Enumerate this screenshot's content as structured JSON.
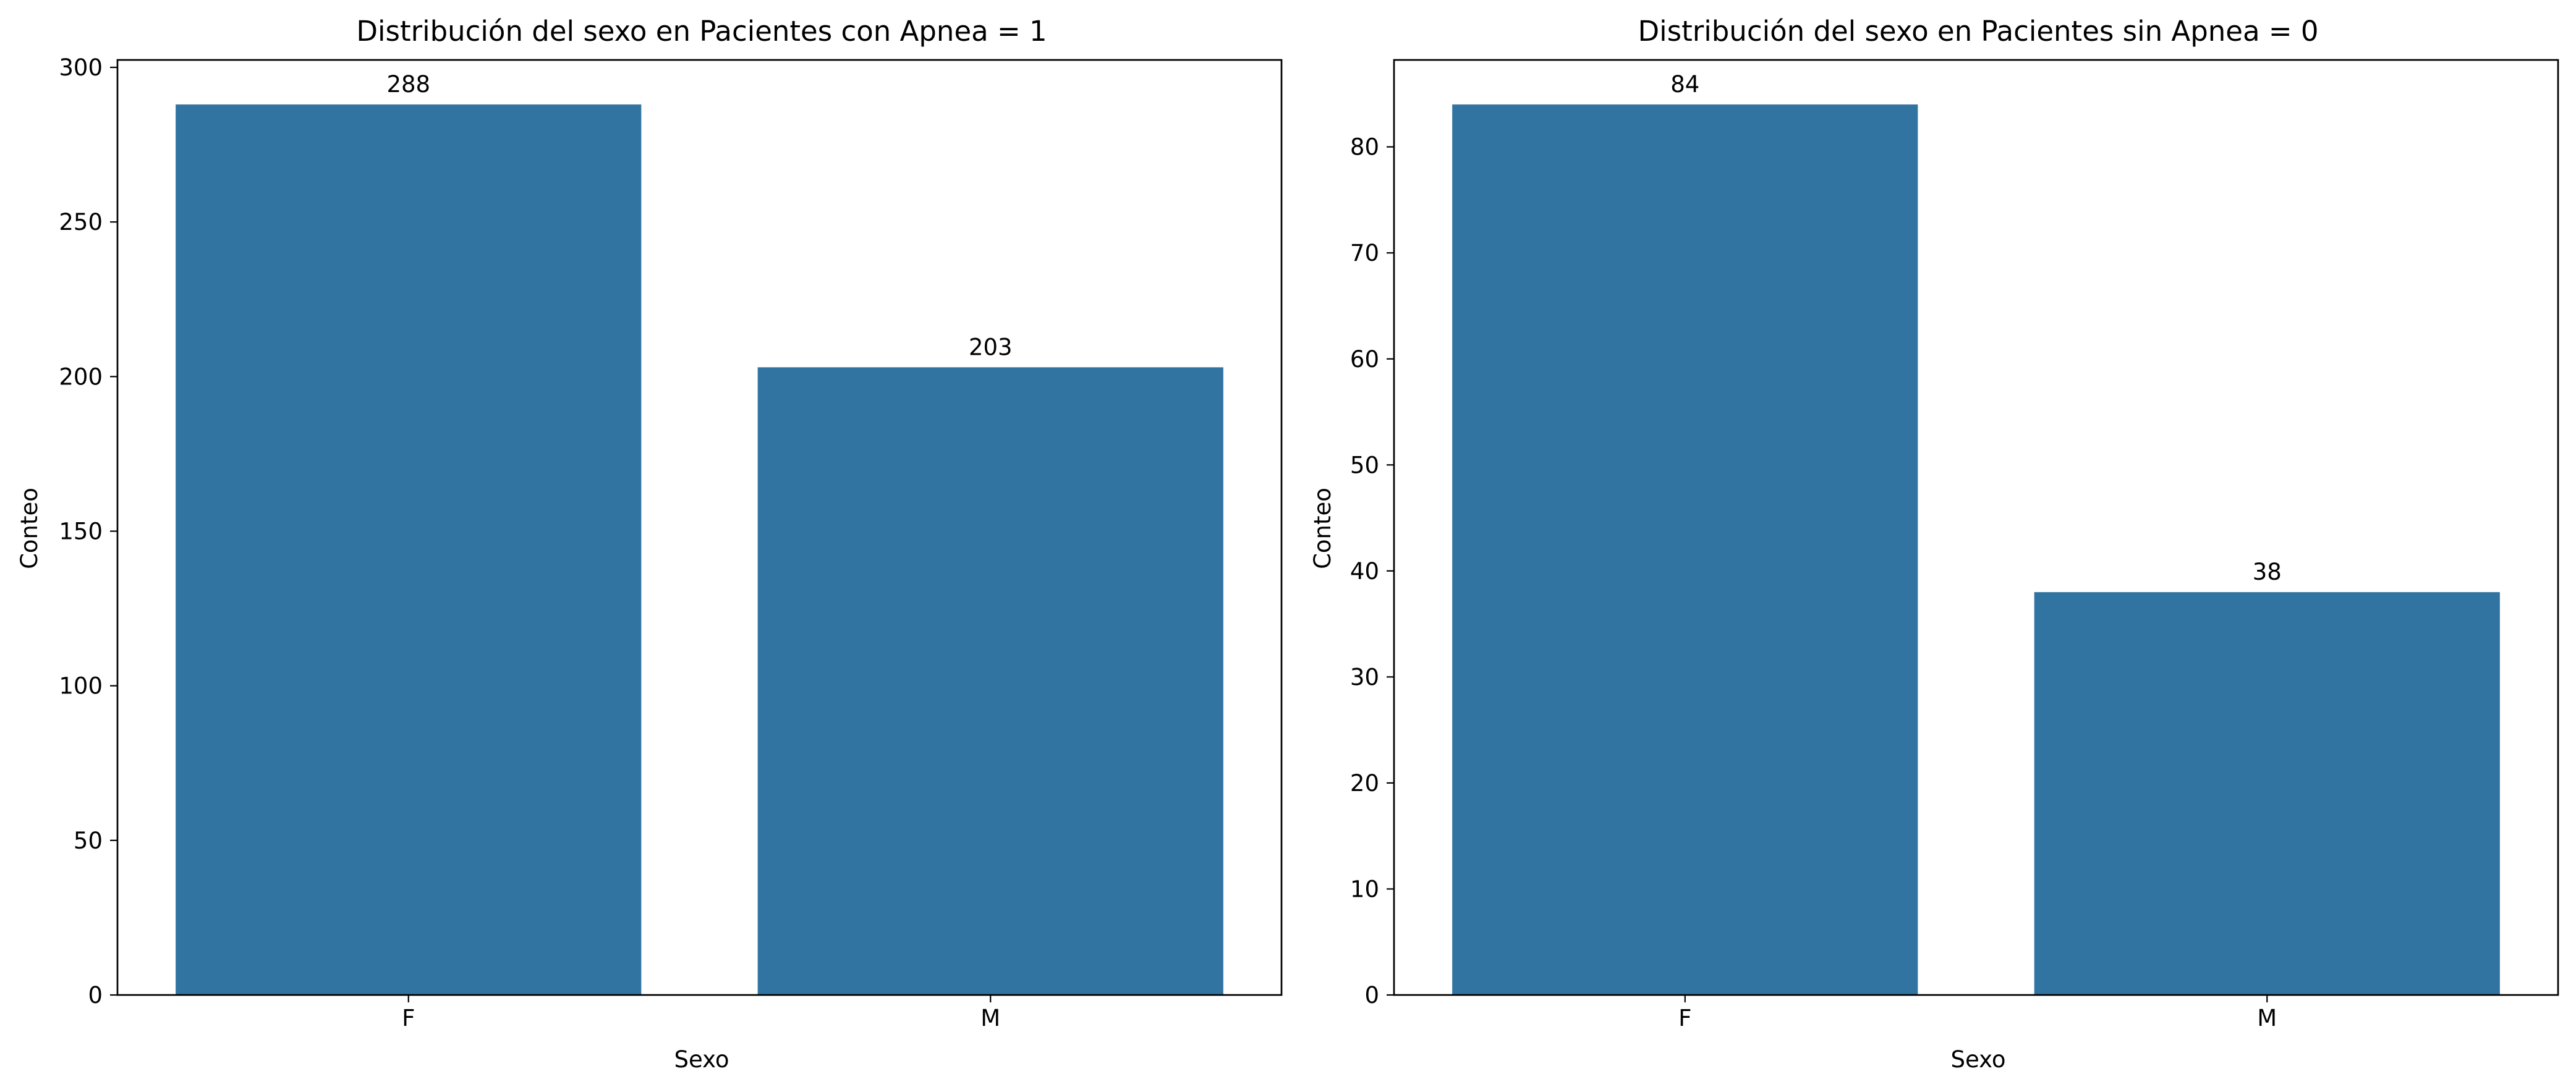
{
  "chart_data": [
    {
      "type": "bar",
      "title": "Distribución del sexo en Pacientes con Apnea = 1",
      "xlabel": "Sexo",
      "ylabel": "Conteo",
      "categories": [
        "F",
        "M"
      ],
      "values": [
        288,
        203
      ],
      "data_labels": [
        "288",
        "203"
      ],
      "ylim": [
        0,
        302.4
      ],
      "yticks": [
        0,
        50,
        100,
        150,
        200,
        250,
        300
      ],
      "ytick_labels": [
        "0",
        "50",
        "100",
        "150",
        "200",
        "250",
        "300"
      ],
      "bar_color": "#3274a1",
      "grid": false,
      "legend": "none"
    },
    {
      "type": "bar",
      "title": "Distribución del sexo en Pacientes sin Apnea = 0",
      "xlabel": "Sexo",
      "ylabel": "Conteo",
      "categories": [
        "F",
        "M"
      ],
      "values": [
        84,
        38
      ],
      "data_labels": [
        "84",
        "38"
      ],
      "ylim": [
        0,
        88.2
      ],
      "yticks": [
        0,
        10,
        20,
        30,
        40,
        50,
        60,
        70,
        80
      ],
      "ytick_labels": [
        "0",
        "10",
        "20",
        "30",
        "40",
        "50",
        "60",
        "70",
        "80"
      ],
      "bar_color": "#3274a1",
      "grid": false,
      "legend": "none"
    }
  ]
}
